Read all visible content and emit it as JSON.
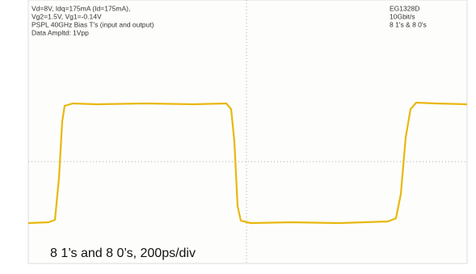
{
  "scope": {
    "settings": [
      "Vd=8V, Idq=175mA (Id=175mA),",
      "Vg2=1.5V, Vg1=-0.14V",
      "PSPL 40GHz Bias T's (input and output)",
      "Data Ampltd: 1Vpp"
    ],
    "instrument": [
      "EG1328D",
      "10Gbit/s",
      "8 1's & 8 0's"
    ]
  },
  "caption": "8 1’s and 8 0’s, 200ps/div"
}
